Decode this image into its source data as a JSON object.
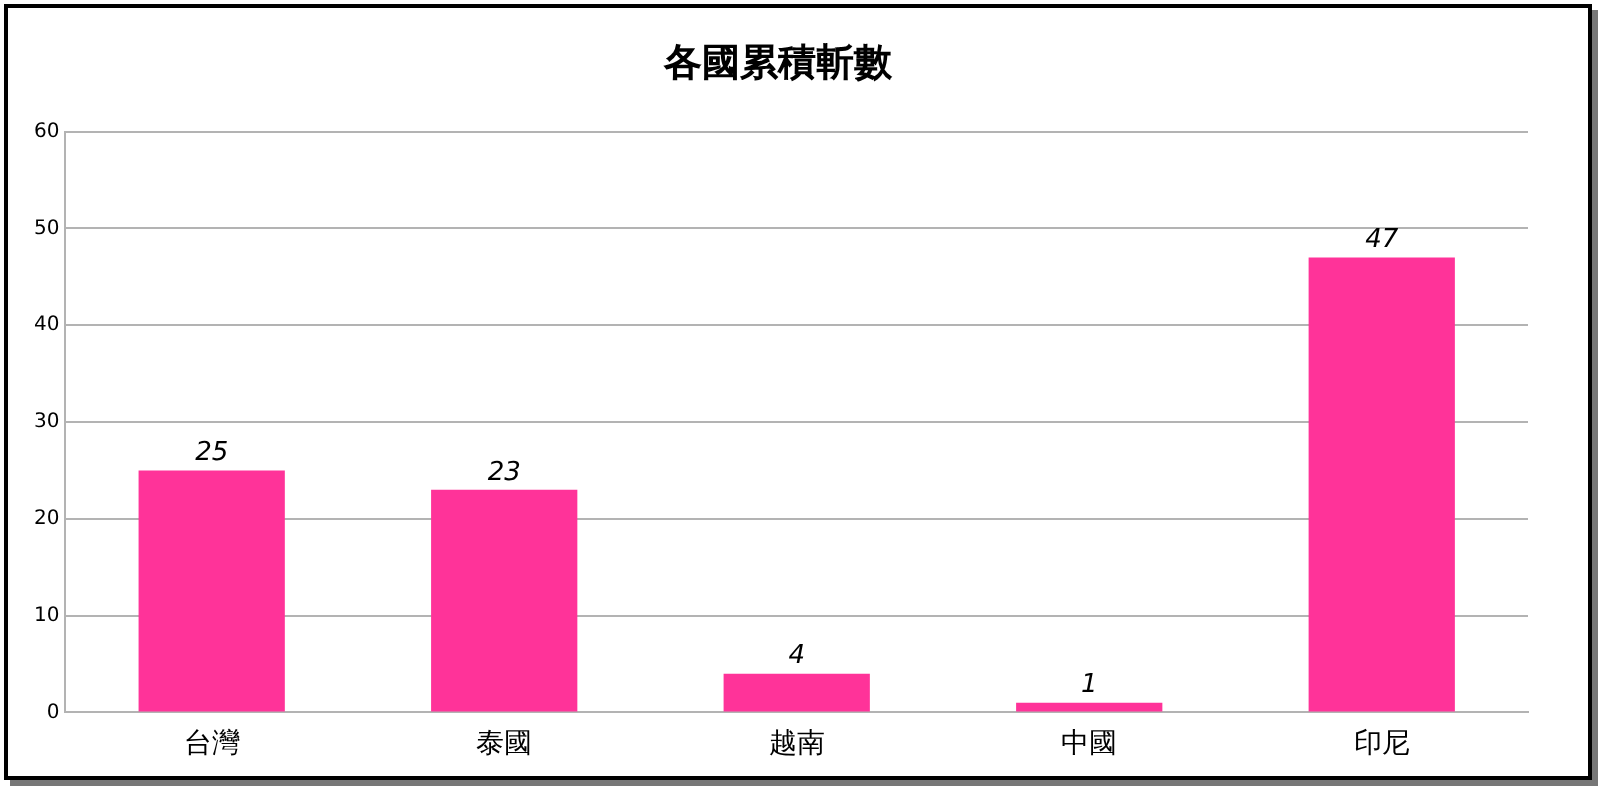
{
  "chart_data": {
    "type": "bar",
    "title": "各國累積斬數",
    "categories": [
      "台灣",
      "泰國",
      "越南",
      "中國",
      "印尼"
    ],
    "values": [
      25,
      23,
      4,
      1,
      47
    ],
    "color": "#ff3399",
    "ylim": [
      0,
      60
    ],
    "yticks": [
      0,
      10,
      20,
      30,
      40,
      50,
      60
    ],
    "grid": "y",
    "data_labels": true,
    "legend": false
  }
}
